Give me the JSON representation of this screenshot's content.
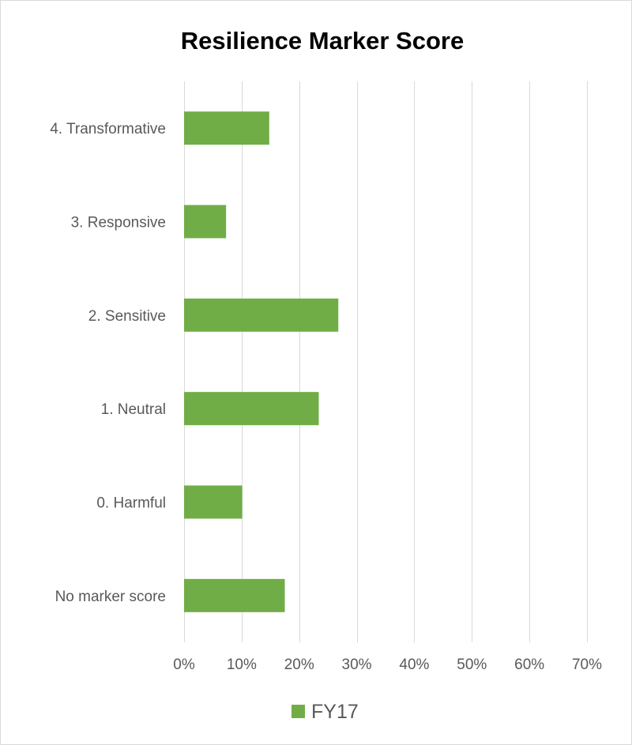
{
  "chart_data": {
    "type": "bar",
    "orientation": "horizontal",
    "title": "Resilience Marker Score",
    "xlabel": "",
    "ylabel": "",
    "categories": [
      "4. Transformative",
      "3. Responsive",
      "2. Sensitive",
      "1. Neutral",
      "0. Harmful",
      "No marker score"
    ],
    "series": [
      {
        "name": "FY17",
        "color": "#70ad47",
        "values": [
          14.8,
          7.3,
          26.8,
          23.4,
          10.1,
          17.5
        ]
      }
    ],
    "xlim": [
      0,
      70
    ],
    "x_ticks": [
      0,
      10,
      20,
      30,
      40,
      50,
      60,
      70
    ],
    "tick_format": "percent",
    "grid": "vertical",
    "gridline_color": "#d9d9d9",
    "legend_position": "bottom"
  }
}
